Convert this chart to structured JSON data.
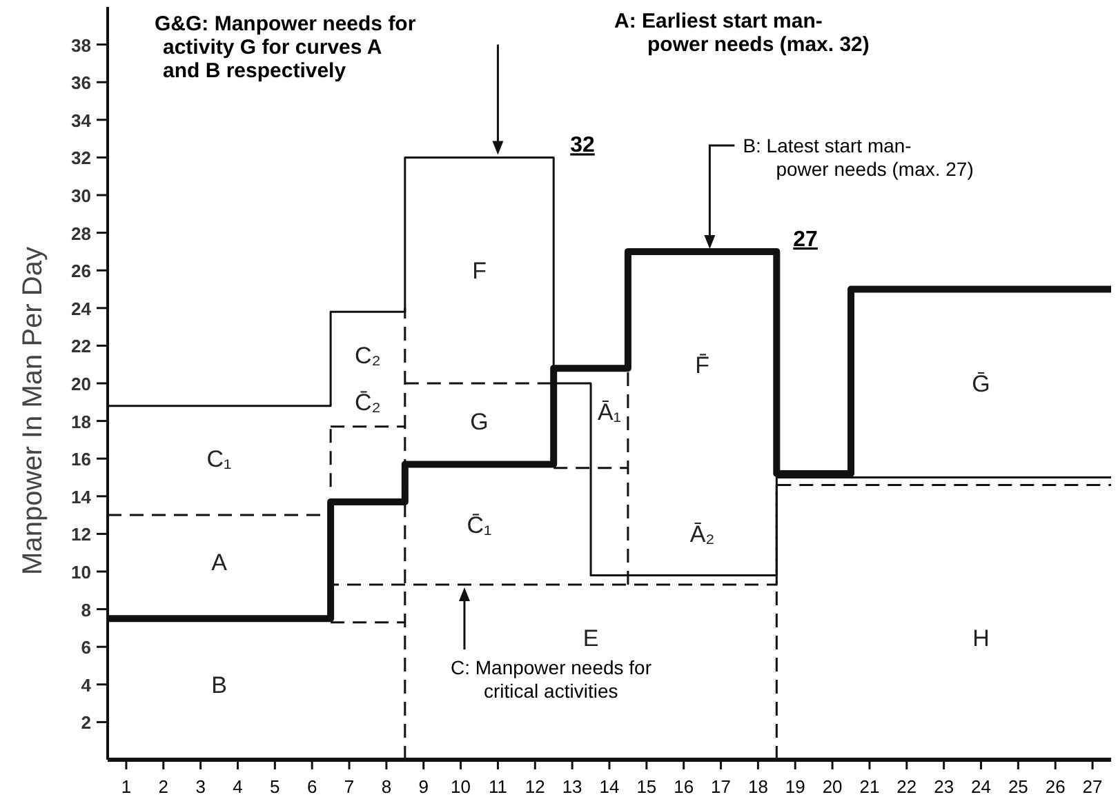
{
  "chart_data": {
    "type": "step",
    "ylabel": "Manpower In Man Per Day",
    "xlim": [
      0.5,
      27.5
    ],
    "ylim": [
      0,
      40
    ],
    "xticks": [
      1,
      2,
      3,
      4,
      5,
      6,
      7,
      8,
      9,
      10,
      11,
      12,
      13,
      14,
      15,
      16,
      17,
      18,
      19,
      20,
      21,
      22,
      23,
      24,
      25,
      26,
      27
    ],
    "yticks": [
      2,
      4,
      6,
      8,
      10,
      12,
      14,
      16,
      18,
      20,
      22,
      24,
      26,
      28,
      30,
      32,
      34,
      36,
      38
    ],
    "grid": false,
    "series": [
      {
        "color": "#111111",
        "line_style": "solid",
        "x": [
          0.5,
          6.5,
          8.5,
          12.5,
          13.5,
          18.5,
          27.5
        ],
        "values": [
          18.8,
          23.8,
          32,
          20,
          9.8,
          15,
          15
        ]
      },
      {
        "color": "#111111",
        "line_style": "solid",
        "x": [
          0.5,
          6.5,
          8.5,
          12.5,
          14.5,
          18.5,
          20.5,
          27.5
        ],
        "values": [
          7.5,
          13.7,
          15.7,
          20.8,
          27,
          15.2,
          25,
          25
        ]
      },
      {
        "color": "#111111",
        "line_style": "dashed",
        "x": [
          0.5,
          6.5,
          18.5,
          27.5
        ],
        "values": [
          13,
          9.3,
          14.6,
          14.6
        ]
      },
      {
        "color": "#111111",
        "line_style": "dashed",
        "x": [
          6.5,
          8.5
        ],
        "values": [
          17.7,
          17.7
        ]
      },
      {
        "color": "#111111",
        "line_style": "dashed",
        "x": [
          6.5,
          8.5
        ],
        "values": [
          7.3,
          7.3
        ]
      },
      {
        "color": "#111111",
        "line_style": "dashed",
        "x": [
          8.5,
          12.5
        ],
        "values": [
          20,
          20
        ]
      },
      {
        "color": "#111111",
        "line_style": "dashed",
        "x": [
          12.5,
          14.5
        ],
        "values": [
          15.5,
          15.5
        ]
      },
      {
        "color": "#111111",
        "line_style": "dashed",
        "x": [
          6.5,
          6.5
        ],
        "values": [
          14.5,
          17.7
        ]
      },
      {
        "color": "#111111",
        "line_style": "dashed",
        "x": [
          8.5,
          8.5
        ],
        "values": [
          0,
          24
        ]
      },
      {
        "color": "#111111",
        "line_style": "dashed",
        "x": [
          14.5,
          14.5
        ],
        "values": [
          9.3,
          20.8
        ]
      },
      {
        "color": "#111111",
        "line_style": "dashed",
        "x": [
          18.5,
          18.5
        ],
        "values": [
          0,
          14.6
        ]
      }
    ],
    "annotations": [
      {
        "text": "G&G: Manpower needs for activity G for curves A and B respectively"
      },
      "A: Earliest start man- power needs (max. 32)",
      "B: Latest start man- power needs (max. 27)",
      "C: Manpower needs for critical activities",
      {
        "text": "32",
        "x": 12.5,
        "y": 32
      },
      {
        "text": "27",
        "x": 18.5,
        "y": 27
      },
      "B",
      "A",
      "C₁",
      "C₂",
      "C̄₂",
      "F",
      "G",
      "C̄₁",
      "E",
      "Ā₁",
      "F̄",
      "Ā₂",
      "Ḡ",
      "H"
    ]
  }
}
